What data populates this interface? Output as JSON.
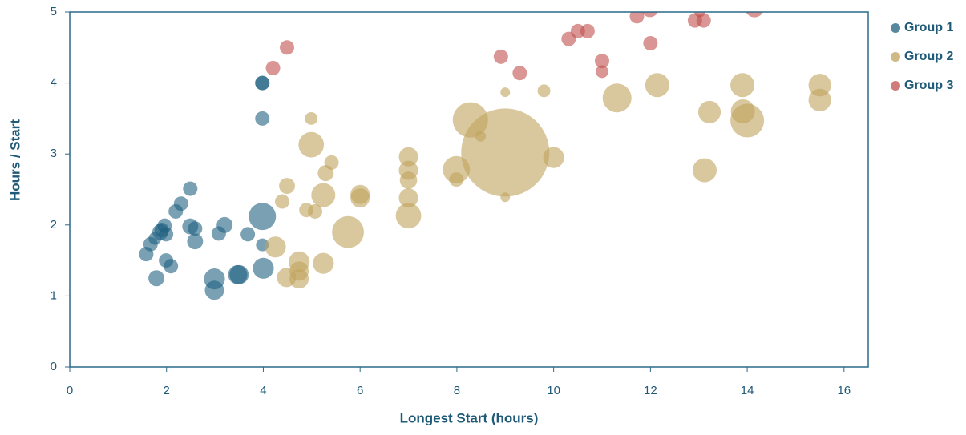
{
  "chart_data": {
    "type": "bubble",
    "x_label": "Longest Start (hours)",
    "y_label": "Hours / Start",
    "xlim": [
      0,
      16.5
    ],
    "ylim": [
      0,
      5
    ],
    "xticks": [
      0,
      2,
      4,
      6,
      8,
      10,
      12,
      14,
      16
    ],
    "yticks": [
      0,
      1,
      2,
      3,
      4,
      5
    ],
    "legend": "right",
    "series": [
      {
        "name": "Group 1",
        "color": "#1f6080",
        "x": [
          1.58,
          1.67,
          1.76,
          1.79,
          1.87,
          1.9,
          1.96,
          1.99,
          1.99,
          2.09,
          2.19,
          2.3,
          2.49,
          2.49,
          2.59,
          2.59,
          2.99,
          2.99,
          3.08,
          3.2,
          3.47,
          3.5,
          3.68,
          3.98,
          3.98,
          3.98,
          3.98,
          3.98,
          4.0
        ],
        "values": [
          1.59,
          1.73,
          1.81,
          1.25,
          1.9,
          1.93,
          1.99,
          1.87,
          1.5,
          1.42,
          2.19,
          2.3,
          2.51,
          1.98,
          1.95,
          1.77,
          1.24,
          1.08,
          1.88,
          2.0,
          1.3,
          1.3,
          1.87,
          4.0,
          4.0,
          3.5,
          2.12,
          1.72,
          1.39
        ],
        "sizes": [
          9,
          9,
          7,
          11,
          11,
          9,
          9,
          9,
          9,
          9,
          9,
          9,
          9,
          11,
          9,
          11,
          19,
          16,
          9,
          11,
          16,
          16,
          9,
          9,
          9,
          9,
          32,
          7,
          19
        ]
      },
      {
        "name": "Group 2",
        "color": "#bfa35e",
        "x": [
          4.25,
          4.39,
          4.49,
          4.48,
          4.74,
          4.74,
          4.74,
          4.89,
          4.99,
          4.99,
          5.07,
          5.24,
          5.24,
          5.29,
          5.41,
          5.75,
          6.0,
          6.0,
          7.0,
          7.0,
          7.0,
          7.0,
          7.0,
          7.99,
          7.99,
          8.28,
          8.49,
          9.0,
          9.0,
          9.0,
          9.8,
          10.0,
          11.31,
          12.14,
          13.12,
          13.22,
          13.9,
          13.91,
          14.0,
          15.5,
          15.5
        ],
        "values": [
          1.69,
          2.33,
          2.55,
          1.26,
          1.48,
          1.35,
          1.24,
          2.21,
          3.5,
          3.13,
          2.19,
          2.42,
          1.46,
          2.73,
          2.88,
          1.9,
          2.43,
          2.38,
          2.96,
          2.77,
          2.63,
          2.38,
          2.13,
          2.78,
          2.64,
          3.48,
          3.25,
          3.87,
          3.02,
          2.39,
          3.89,
          2.95,
          3.79,
          3.97,
          2.77,
          3.59,
          3.97,
          3.6,
          3.47,
          3.97,
          3.76
        ],
        "sizes": [
          19,
          9,
          11,
          16,
          19,
          16,
          16,
          9,
          7,
          28,
          9,
          25,
          19,
          11,
          9,
          44,
          16,
          16,
          16,
          16,
          13,
          16,
          28,
          32,
          9,
          54,
          5,
          4,
          336,
          4,
          7,
          19,
          36,
          25,
          25,
          22,
          25,
          25,
          49,
          22,
          22
        ]
      },
      {
        "name": "Group 3",
        "color": "#c0504d",
        "x": [
          4.2,
          4.49,
          8.91,
          9.3,
          10.31,
          10.5,
          10.7,
          11.0,
          11.0,
          11.72,
          11.99,
          12.0,
          12.92,
          13.02,
          13.1,
          14.15
        ],
        "values": [
          4.21,
          4.5,
          4.37,
          4.14,
          4.62,
          4.73,
          4.73,
          4.31,
          4.16,
          4.94,
          5.05,
          4.56,
          4.88,
          5.0,
          4.88,
          5.06
        ],
        "sizes": [
          9,
          9,
          9,
          9,
          9,
          9,
          9,
          9,
          7,
          9,
          13,
          9,
          9,
          5,
          9,
          16
        ]
      }
    ]
  }
}
